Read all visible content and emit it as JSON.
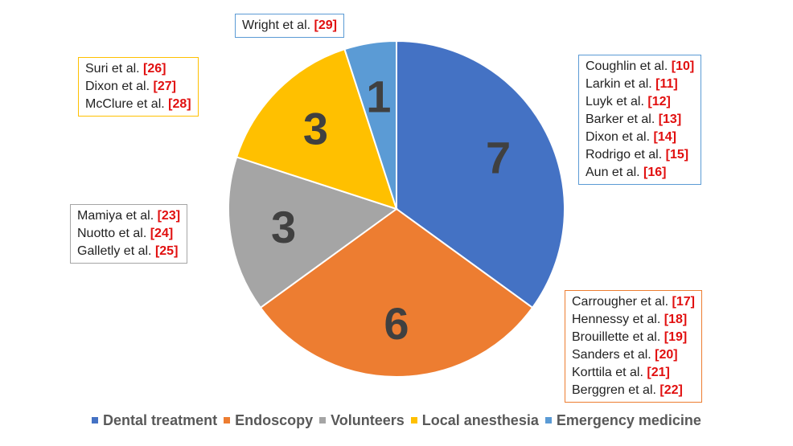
{
  "chart_data": {
    "type": "pie",
    "slices": [
      {
        "label": "Dental treatment",
        "value": 7,
        "value_label": "7",
        "color": "#4472c4"
      },
      {
        "label": "Endoscopy",
        "value": 6,
        "value_label": "6",
        "color": "#ed7d31"
      },
      {
        "label": "Volunteers",
        "value": 3,
        "value_label": "3",
        "color": "#a5a5a5"
      },
      {
        "label": "Local anesthesia",
        "value": 3,
        "value_label": "3",
        "color": "#ffc000"
      },
      {
        "label": "Emergency medicine",
        "value": 1,
        "value_label": "1",
        "color": "#5b9bd5"
      }
    ],
    "legend_position": "bottom",
    "callouts": [
      {
        "category": "Dental treatment",
        "border": "#5b9bd5",
        "entries": [
          {
            "author": "Coughlin et al. ",
            "ref": "[10]"
          },
          {
            "author": "Larkin et al. ",
            "ref": "[11]"
          },
          {
            "author": "Luyk et al. ",
            "ref": "[12]"
          },
          {
            "author": "Barker et al. ",
            "ref": "[13]"
          },
          {
            "author": "Dixon et al. ",
            "ref": "[14]"
          },
          {
            "author": "Rodrigo et al. ",
            "ref": "[15]"
          },
          {
            "author": "Aun et al. ",
            "ref": "[16]"
          }
        ]
      },
      {
        "category": "Endoscopy",
        "border": "#ed7d31",
        "entries": [
          {
            "author": "Carrougher et al. ",
            "ref": "[17]"
          },
          {
            "author": "Hennessy et al. ",
            "ref": "[18]"
          },
          {
            "author": "Brouillette et al. ",
            "ref": "[19]"
          },
          {
            "author": "Sanders et al. ",
            "ref": "[20]"
          },
          {
            "author": "Korttila et al. ",
            "ref": "[21]"
          },
          {
            "author": "Berggren et al. ",
            "ref": "[22]"
          }
        ]
      },
      {
        "category": "Volunteers",
        "border": "#a5a5a5",
        "entries": [
          {
            "author": "Mamiya et al. ",
            "ref": "[23]"
          },
          {
            "author": "Nuotto et al. ",
            "ref": "[24]"
          },
          {
            "author": "Galletly et al. ",
            "ref": "[25]"
          }
        ]
      },
      {
        "category": "Local anesthesia",
        "border": "#ffc000",
        "entries": [
          {
            "author": "Suri et al. ",
            "ref": "[26]"
          },
          {
            "author": "Dixon et al. ",
            "ref": "[27]"
          },
          {
            "author": "McClure et al. ",
            "ref": "[28]"
          }
        ]
      },
      {
        "category": "Emergency medicine",
        "border": "#5b9bd5",
        "entries": [
          {
            "author": "Wright et al. ",
            "ref": "[29]"
          }
        ]
      }
    ]
  }
}
